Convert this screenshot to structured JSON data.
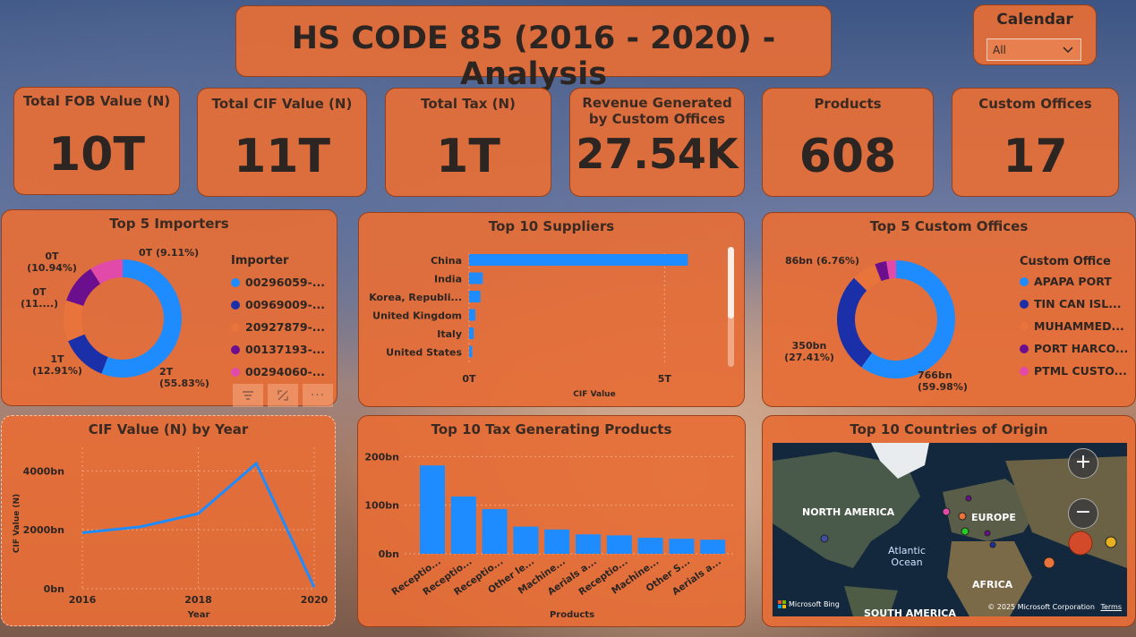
{
  "header": {
    "title": "HS CODE 85 (2016 - 2020) - Analysis"
  },
  "calendar": {
    "label": "Calendar",
    "selected": "All"
  },
  "kpis": [
    {
      "label": "Total FOB Value (N)",
      "value": "10T"
    },
    {
      "label": "Total CIF Value (N)",
      "value": "11T"
    },
    {
      "label": "Total Tax (N)",
      "value": "1T"
    },
    {
      "label": "Revenue Generated by Custom Offices",
      "value": "27.54K"
    },
    {
      "label": "Products",
      "value": "608"
    },
    {
      "label": "Custom Offices",
      "value": "17"
    }
  ],
  "importers": {
    "title": "Top 5 Importers",
    "legend_title": "Importer",
    "legend": [
      "00296059-...",
      "00969009-...",
      "20927879-...",
      "00137193-...",
      "00294060-..."
    ],
    "colors": [
      "#1e8cff",
      "#1a2fa8",
      "#e8743b",
      "#6b0f8f",
      "#e24aa9"
    ],
    "labels": [
      "2T\n(55.83%)",
      "1T\n(12.91%)",
      "0T\n(11....)",
      "0T\n(10.94%)",
      "0T (9.11%)"
    ],
    "toolbar": [
      "filter-icon",
      "focus-mode-icon",
      "more-options-icon"
    ]
  },
  "suppliers": {
    "title": "Top 10 Suppliers",
    "xlabel": "CIF Value",
    "ticks": [
      "0T",
      "5T"
    ]
  },
  "offices": {
    "title": "Top 5 Custom Offices",
    "legend_title": "Custom Office",
    "legend": [
      "APAPA PORT",
      "TIN CAN ISL...",
      "MUHAMMED...",
      "PORT HARCO...",
      "PTML CUSTO..."
    ],
    "colors": [
      "#1e8cff",
      "#1a2fa8",
      "#e8743b",
      "#6b0f8f",
      "#e24aa9"
    ],
    "labels": [
      "766bn\n(59.98%)",
      "350bn\n(27.41%)",
      "86bn (6.76%)"
    ]
  },
  "cif_year": {
    "title": "CIF Value (N) by Year"
  },
  "tax_products": {
    "title": "Top 10 Tax Generating Products"
  },
  "map": {
    "title": "Top 10 Countries of Origin",
    "labels": [
      "NORTH AMERICA",
      "EUROPE",
      "Atlantic\nOcean",
      "AFRICA",
      "SOUTH AMERICA"
    ],
    "attribution": "© 2025 Microsoft Corporation",
    "terms": "Terms",
    "brand": "Microsoft Bing",
    "zoom_in": "+",
    "zoom_out": "−"
  },
  "chart_data": [
    {
      "type": "pie",
      "title": "Top 5 Importers",
      "categories": [
        "00296059-...",
        "00969009-...",
        "20927879-...",
        "00137193-...",
        "00294060-..."
      ],
      "values": [
        55.83,
        12.91,
        11.21,
        10.94,
        9.11
      ]
    },
    {
      "type": "bar",
      "title": "Top 10 Suppliers",
      "categories": [
        "China",
        "India",
        "Korea, Republi...",
        "United Kingdom",
        "Italy",
        "United States"
      ],
      "values": [
        5.6,
        0.35,
        0.29,
        0.16,
        0.12,
        0.08
      ],
      "xlabel": "CIF Value",
      "xlim": [
        0,
        6
      ]
    },
    {
      "type": "pie",
      "title": "Top 5 Custom Offices",
      "categories": [
        "APAPA PORT",
        "TIN CAN ISL...",
        "MUHAMMED...",
        "PORT HARCO...",
        "PTML CUSTO..."
      ],
      "values": [
        59.98,
        27.41,
        6.76,
        3.2,
        2.65
      ]
    },
    {
      "type": "line",
      "title": "CIF Value (N) by Year",
      "x": [
        2016,
        2017,
        2018,
        2019,
        2020
      ],
      "values": [
        1900,
        2100,
        2550,
        4250,
        50
      ],
      "xlabel": "Year",
      "ylabel": "CIF Value (N)",
      "yticks": [
        "0bn",
        "2000bn",
        "4000bn"
      ],
      "xticks": [
        "2016",
        "2018",
        "2020"
      ],
      "ylim": [
        0,
        4800
      ]
    },
    {
      "type": "bar",
      "title": "Top 10 Tax Generating Products",
      "categories": [
        "Receptio...",
        "Receptio...",
        "Receptio...",
        "Other le...",
        "Machine...",
        "Aerials a...",
        "Receptio...",
        "Machine...",
        "Other S...",
        "Aerials a..."
      ],
      "values": [
        182,
        118,
        92,
        56,
        50,
        40,
        38,
        33,
        31,
        29
      ],
      "xlabel": "Products",
      "yticks": [
        "0bn",
        "100bn",
        "200bn"
      ],
      "ylim": [
        0,
        210
      ]
    }
  ]
}
